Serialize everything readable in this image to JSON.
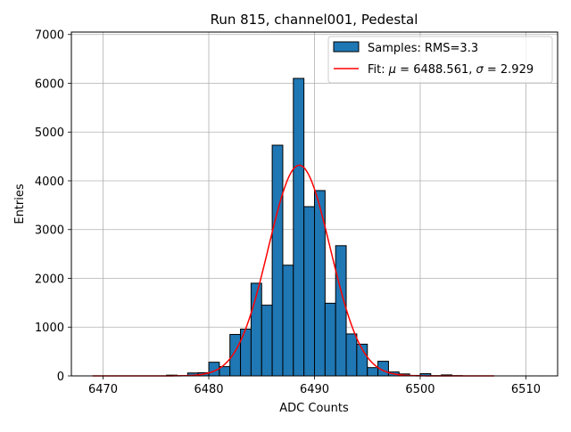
{
  "chart_data": {
    "type": "bar",
    "title": "Run 815, channel001, Pedestal",
    "xlabel": "ADC Counts",
    "ylabel": "Entries",
    "xlim": [
      6467,
      6513
    ],
    "ylim": [
      0,
      7050
    ],
    "xticks": [
      6470,
      6480,
      6490,
      6500,
      6510
    ],
    "yticks": [
      0,
      1000,
      2000,
      3000,
      4000,
      5000,
      6000,
      7000
    ],
    "grid": true,
    "legend_position": "top-right",
    "bar_color": "#1f77b4",
    "fit_color": "#ff0000",
    "histogram": {
      "name": "Samples: RMS=3.3",
      "bin_width": 1,
      "bins": [
        {
          "x0": 6476,
          "value": 15
        },
        {
          "x0": 6477,
          "value": 5
        },
        {
          "x0": 6478,
          "value": 60
        },
        {
          "x0": 6479,
          "value": 65
        },
        {
          "x0": 6480,
          "value": 280
        },
        {
          "x0": 6481,
          "value": 190
        },
        {
          "x0": 6482,
          "value": 850
        },
        {
          "x0": 6483,
          "value": 960
        },
        {
          "x0": 6484,
          "value": 1900
        },
        {
          "x0": 6485,
          "value": 1450
        },
        {
          "x0": 6486,
          "value": 4730
        },
        {
          "x0": 6487,
          "value": 2270
        },
        {
          "x0": 6488,
          "value": 6100
        },
        {
          "x0": 6489,
          "value": 3470
        },
        {
          "x0": 6490,
          "value": 3800
        },
        {
          "x0": 6491,
          "value": 1490
        },
        {
          "x0": 6492,
          "value": 2670
        },
        {
          "x0": 6493,
          "value": 860
        },
        {
          "x0": 6494,
          "value": 650
        },
        {
          "x0": 6495,
          "value": 170
        },
        {
          "x0": 6496,
          "value": 300
        },
        {
          "x0": 6497,
          "value": 80
        },
        {
          "x0": 6498,
          "value": 40
        },
        {
          "x0": 6499,
          "value": 10
        },
        {
          "x0": 6500,
          "value": 45
        },
        {
          "x0": 6501,
          "value": 5
        },
        {
          "x0": 6502,
          "value": 20
        },
        {
          "x0": 6503,
          "value": 5
        }
      ]
    },
    "fit": {
      "name_prefix": "Fit: ",
      "mu_symbol": "μ",
      "mu_text": " = 6488.561, ",
      "sigma_symbol": "σ",
      "sigma_text": " = 2.929",
      "mu": 6488.561,
      "sigma": 2.929,
      "amplitude": 4320,
      "x_range": [
        6469,
        6507
      ]
    }
  }
}
